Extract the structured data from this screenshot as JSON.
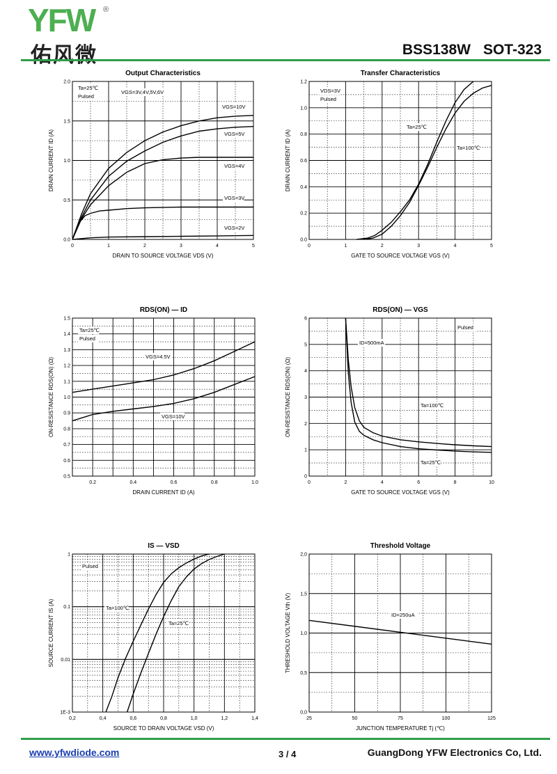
{
  "header": {
    "logo_latin": "YFW",
    "logo_registered": "®",
    "logo_chinese": "佑风微",
    "part_number": "BSS138W",
    "package": "SOT-323",
    "accent_color": "#2e9e4a",
    "logo_orange": "#f28c28"
  },
  "footer": {
    "website": "www.yfwdiode.com",
    "page": "3 / 4",
    "company": "GuangDong YFW Electronics Co, Ltd."
  },
  "chart_data": [
    {
      "type": "line",
      "title": "Output Characteristics",
      "xlabel": "DRAIN TO SOURCE VOLTAGE  V_DS  (V)",
      "ylabel": "DRAIN CURRENT  I_D  (A)",
      "xlim": [
        0,
        5
      ],
      "ylim": [
        0,
        2.0
      ],
      "xticks": [
        "0",
        "1",
        "2",
        "3",
        "4",
        "5"
      ],
      "yticks": [
        "0.0",
        "0.5",
        "1.0",
        "1.5",
        "2.0"
      ],
      "annotations": [
        "Ta=25℃",
        "Pulsed",
        "VGS=3V,4V,5V,6V",
        "VGS=10V",
        "VGS=5V",
        "VGS=4V",
        "VGS=3V",
        "VGS=2V"
      ],
      "series": [
        {
          "name": "VGS=10V",
          "x": [
            0,
            0.25,
            0.5,
            1,
            1.5,
            2,
            2.5,
            3,
            3.5,
            4,
            4.5,
            5
          ],
          "y": [
            0,
            0.32,
            0.58,
            0.9,
            1.1,
            1.25,
            1.36,
            1.44,
            1.5,
            1.54,
            1.56,
            1.57
          ]
        },
        {
          "name": "VGS=5V",
          "x": [
            0,
            0.25,
            0.5,
            1,
            1.5,
            2,
            2.5,
            3,
            3.5,
            4,
            4.5,
            5
          ],
          "y": [
            0,
            0.28,
            0.5,
            0.8,
            0.99,
            1.12,
            1.23,
            1.31,
            1.37,
            1.4,
            1.42,
            1.43
          ]
        },
        {
          "name": "VGS=4V",
          "x": [
            0,
            0.25,
            0.5,
            1,
            1.5,
            2,
            2.5,
            3,
            3.5,
            4,
            4.5,
            5
          ],
          "y": [
            0,
            0.26,
            0.44,
            0.68,
            0.85,
            0.96,
            1.01,
            1.03,
            1.04,
            1.04,
            1.04,
            1.04
          ]
        },
        {
          "name": "VGS=3V",
          "x": [
            0,
            0.1,
            0.2,
            0.35,
            0.5,
            0.75,
            1,
            1.5,
            2,
            3,
            4,
            5
          ],
          "y": [
            0,
            0.12,
            0.22,
            0.3,
            0.33,
            0.36,
            0.37,
            0.39,
            0.4,
            0.41,
            0.41,
            0.41
          ]
        },
        {
          "name": "VGS=2V",
          "x": [
            0,
            0.5,
            1,
            2,
            3,
            4,
            5
          ],
          "y": [
            0,
            0.02,
            0.03,
            0.035,
            0.04,
            0.045,
            0.05
          ]
        }
      ]
    },
    {
      "type": "line",
      "title": "Transfer Characteristics",
      "xlabel": "GATE TO SOURCE VOLTAGE  V_GS  (V)",
      "ylabel": "DRAIN CURRENT  I_D  (A)",
      "xlim": [
        0,
        5
      ],
      "ylim": [
        0,
        1.2
      ],
      "xticks": [
        "0",
        "1",
        "2",
        "3",
        "4",
        "5"
      ],
      "yticks": [
        "0.0",
        "0.2",
        "0.4",
        "0.6",
        "0.8",
        "1.0",
        "1.2"
      ],
      "annotations": [
        "VDS=3V",
        "Pulsed",
        "Ta=25℃",
        "Ta=100℃"
      ],
      "series": [
        {
          "name": "Ta=25℃",
          "x": [
            1.3,
            1.6,
            1.8,
            2,
            2.25,
            2.5,
            2.75,
            3,
            3.25,
            3.5,
            3.75,
            4,
            4.25,
            4.5
          ],
          "y": [
            0,
            0.01,
            0.03,
            0.07,
            0.13,
            0.21,
            0.3,
            0.42,
            0.57,
            0.74,
            0.9,
            1.04,
            1.14,
            1.2
          ]
        },
        {
          "name": "Ta=100℃",
          "x": [
            1.5,
            1.75,
            2,
            2.25,
            2.5,
            2.75,
            3,
            3.25,
            3.5,
            3.75,
            4,
            4.25,
            4.5,
            4.75,
            5
          ],
          "y": [
            0,
            0.01,
            0.04,
            0.1,
            0.18,
            0.28,
            0.41,
            0.55,
            0.7,
            0.84,
            0.96,
            1.05,
            1.11,
            1.15,
            1.17
          ]
        }
      ]
    },
    {
      "type": "line",
      "title": "RDS(ON) — ID",
      "xlabel": "DRAIN CURRENT  I_D  (A)",
      "ylabel": "ON-RESISTANCE  R_DS(ON)  (Ω)",
      "xlim": [
        0.1,
        1.0
      ],
      "ylim": [
        0.5,
        1.5
      ],
      "xticks": [
        "0.2",
        "0.4",
        "0.6",
        "0.8",
        "1.0"
      ],
      "yticks": [
        "0.5",
        "0.6",
        "0.7",
        "0.8",
        "0.9",
        "1.0",
        "1.1",
        "1.2",
        "1.3",
        "1.4",
        "1.5"
      ],
      "annotations": [
        "Ta=25℃",
        "Pulsed",
        "VGS=4.5V",
        "VGS=10V"
      ],
      "series": [
        {
          "name": "VGS=4.5V",
          "x": [
            0.1,
            0.2,
            0.3,
            0.4,
            0.5,
            0.6,
            0.7,
            0.8,
            0.9,
            1.0
          ],
          "y": [
            1.03,
            1.05,
            1.07,
            1.09,
            1.11,
            1.14,
            1.18,
            1.23,
            1.29,
            1.35
          ]
        },
        {
          "name": "VGS=10V",
          "x": [
            0.1,
            0.2,
            0.3,
            0.4,
            0.5,
            0.6,
            0.7,
            0.8,
            0.9,
            1.0
          ],
          "y": [
            0.85,
            0.89,
            0.91,
            0.925,
            0.94,
            0.96,
            0.99,
            1.03,
            1.08,
            1.13
          ]
        }
      ]
    },
    {
      "type": "line",
      "title": "RDS(ON) — VGS",
      "xlabel": "GATE TO SOURCE VOLTAGE  V_GS  (V)",
      "ylabel": "ON-RESISTANCE  R_DS(ON)  (Ω)",
      "xlim": [
        0,
        10
      ],
      "ylim": [
        0,
        6
      ],
      "xticks": [
        "0",
        "2",
        "4",
        "6",
        "8",
        "10"
      ],
      "yticks": [
        "0",
        "1",
        "2",
        "3",
        "4",
        "5",
        "6"
      ],
      "annotations": [
        "Pulsed",
        "ID=500mA",
        "Ta=100℃",
        "Ta=25℃"
      ],
      "series": [
        {
          "name": "Ta=100℃",
          "x": [
            2.0,
            2.15,
            2.3,
            2.5,
            2.75,
            3,
            3.5,
            4,
            5,
            6,
            7,
            8,
            9,
            10
          ],
          "y": [
            6,
            4.4,
            3.4,
            2.6,
            2.1,
            1.85,
            1.65,
            1.52,
            1.38,
            1.3,
            1.24,
            1.19,
            1.15,
            1.12
          ]
        },
        {
          "name": "Ta=25℃",
          "x": [
            2.0,
            2.15,
            2.3,
            2.5,
            2.75,
            3,
            3.5,
            4,
            5,
            6,
            7,
            8,
            9,
            10
          ],
          "y": [
            6,
            3.9,
            2.8,
            2.05,
            1.7,
            1.55,
            1.38,
            1.27,
            1.12,
            1.04,
            0.99,
            0.95,
            0.92,
            0.9
          ]
        }
      ]
    },
    {
      "type": "line",
      "title": "IS — VSD",
      "xlabel": "SOURCE TO DRAIN VOLTAGE  V_SD  (V)",
      "ylabel": "SOURCE CURRENT  I_S  (A)",
      "xlim": [
        0.2,
        1.4
      ],
      "ylim": [
        0.001,
        1
      ],
      "yscale": "log",
      "xticks": [
        "0,2",
        "0,4",
        "0,6",
        "0,8",
        "1,0",
        "1,2",
        "1,4"
      ],
      "yticks": [
        "1E-3",
        "0.01",
        "0.1",
        "1"
      ],
      "annotations": [
        "Pulsed",
        "Ta=100℃",
        "Ta=25℃"
      ],
      "series": [
        {
          "name": "Ta=100℃",
          "x": [
            0.42,
            0.46,
            0.5,
            0.55,
            0.6,
            0.65,
            0.7,
            0.75,
            0.8,
            0.85,
            0.9,
            0.95,
            1.0,
            1.05,
            1.1
          ],
          "y": [
            0.001,
            0.002,
            0.0045,
            0.0105,
            0.022,
            0.045,
            0.09,
            0.17,
            0.29,
            0.42,
            0.55,
            0.68,
            0.8,
            0.92,
            1.0
          ]
        },
        {
          "name": "Ta=25℃",
          "x": [
            0.56,
            0.6,
            0.65,
            0.7,
            0.75,
            0.8,
            0.85,
            0.9,
            0.95,
            1.0,
            1.05,
            1.1,
            1.15,
            1.2
          ],
          "y": [
            0.001,
            0.0022,
            0.0055,
            0.013,
            0.03,
            0.065,
            0.13,
            0.24,
            0.37,
            0.52,
            0.66,
            0.79,
            0.9,
            1.0
          ]
        }
      ]
    },
    {
      "type": "line",
      "title": "Threshold Voltage",
      "xlabel": "JUNCTION TEMPERATURE  T_j  (℃)",
      "ylabel": "THRESHOLD VOLTAGE  V_th  (V)",
      "xlim": [
        25,
        125
      ],
      "ylim": [
        0,
        2.0
      ],
      "xticks": [
        "25",
        "50",
        "75",
        "100",
        "125"
      ],
      "yticks": [
        "0,0",
        "0,5",
        "1,0",
        "1,5",
        "2,0"
      ],
      "annotations": [
        "ID=250uA"
      ],
      "series": [
        {
          "name": "ID=250uA",
          "x": [
            25,
            125
          ],
          "y": [
            1.16,
            0.86
          ]
        }
      ]
    }
  ]
}
